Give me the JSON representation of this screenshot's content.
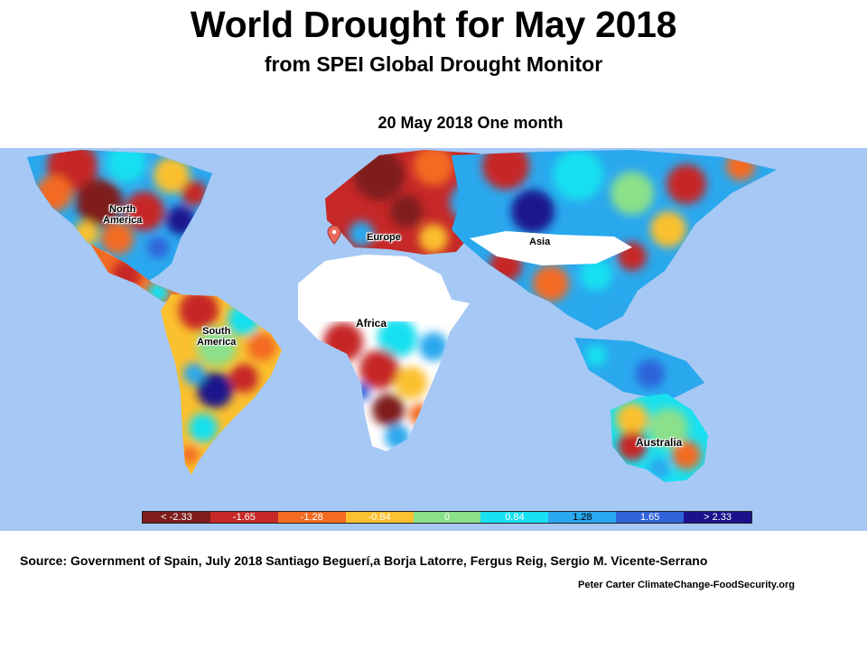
{
  "header": {
    "title": "World Drought for May 2018",
    "subtitle": "from SPEI Global Drought Monitor",
    "date_label": "20 May 2018 One month"
  },
  "map": {
    "continents": {
      "north_america": "North\nAmerica",
      "south_america": "South\nAmerica",
      "europe": "Europe",
      "africa": "Africa",
      "asia": "Asia",
      "australia": "Australia"
    },
    "marker_icon": "map-pin-icon",
    "colors": {
      "ocean": "#a6c8f5",
      "no_data": "#ffffff"
    }
  },
  "legend": {
    "items": [
      {
        "label": "< -2.33",
        "color": "#7f1d1d",
        "text_color": "#ffffff"
      },
      {
        "label": "-1.65",
        "color": "#c62828",
        "text_color": "#ffffff"
      },
      {
        "label": "-1.28",
        "color": "#f36b22",
        "text_color": "#ffffff"
      },
      {
        "label": "-0.84",
        "color": "#fbc02d",
        "text_color": "#ffffff"
      },
      {
        "label": "0",
        "color": "#8be08a",
        "text_color": "#ffffff"
      },
      {
        "label": "0.84",
        "color": "#19e0f0",
        "text_color": "#ffffff"
      },
      {
        "label": "1.28",
        "color": "#2aa8ee",
        "text_color": "#000000"
      },
      {
        "label": "1.65",
        "color": "#2f63d9",
        "text_color": "#ffffff"
      },
      {
        "label": "> 2.33",
        "color": "#1a128c",
        "text_color": "#ffffff"
      }
    ]
  },
  "footer": {
    "source": "Source: Government of Spain, July 2018   Santiago Beguerí,a Borja Latorre, Fergus Reig, Sergio M. Vicente-Serrano",
    "credit": "Peter Carter ClimateChange-FoodSecurity.org"
  }
}
